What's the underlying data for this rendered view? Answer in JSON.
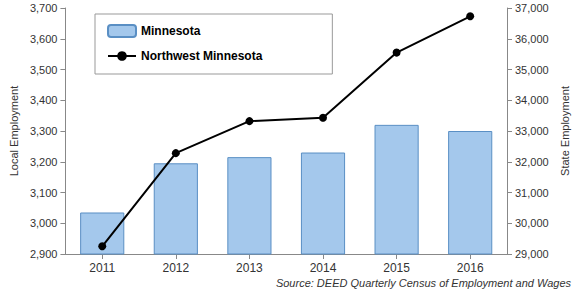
{
  "chart_data": {
    "type": "bar",
    "source": "Source: DEED Quarterly Census of Employment and Wages",
    "categories": [
      "2011",
      "2012",
      "2013",
      "2014",
      "2015",
      "2016"
    ],
    "y_label": "Local Employment",
    "y2_label": "State Employment",
    "ylim": [
      2900,
      3700
    ],
    "yticks": [
      {
        "value": 2900,
        "label": "2,900"
      },
      {
        "value": 3000,
        "label": "3,000"
      },
      {
        "value": 3100,
        "label": "3,100"
      },
      {
        "value": 3200,
        "label": "3,200"
      },
      {
        "value": 3300,
        "label": "3,300"
      },
      {
        "value": 3400,
        "label": "3,400"
      },
      {
        "value": 3500,
        "label": "3,500"
      },
      {
        "value": 3600,
        "label": "3,600"
      },
      {
        "value": 3700,
        "label": "3,700"
      }
    ],
    "y2lim": [
      29000,
      37000
    ],
    "y2ticks": [
      {
        "value": 29000,
        "label": "29,000"
      },
      {
        "value": 30000,
        "label": "30,000"
      },
      {
        "value": 31000,
        "label": "31,000"
      },
      {
        "value": 32000,
        "label": "32,000"
      },
      {
        "value": 33000,
        "label": "33,000"
      },
      {
        "value": 34000,
        "label": "34,000"
      },
      {
        "value": 35000,
        "label": "35,000"
      },
      {
        "value": 36000,
        "label": "36,000"
      },
      {
        "value": 37000,
        "label": "37,000"
      }
    ],
    "grid": false,
    "legend": "upper left",
    "series": [
      {
        "name": "Minnesota",
        "type": "bar",
        "axis": "y2",
        "color": "#a4c8ec",
        "values": [
          30350,
          31950,
          32150,
          32300,
          33200,
          33000
        ]
      },
      {
        "name": "Northwest Minnesota",
        "type": "line",
        "color": "#000000",
        "marker": "circle",
        "line_style": "solid",
        "values": [
          2925,
          3228,
          3332,
          3343,
          3555,
          3673
        ]
      }
    ]
  }
}
